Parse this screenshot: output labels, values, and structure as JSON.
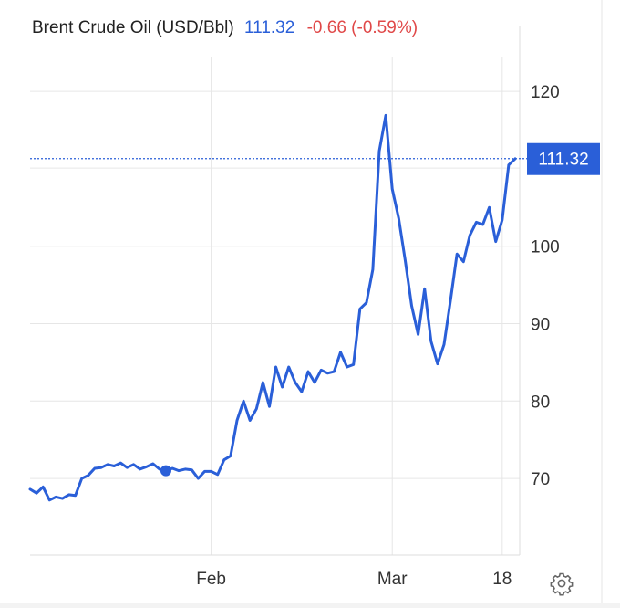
{
  "header": {
    "name": "Brent Crude Oil (USD/Bbl)",
    "price": "111.32",
    "change": "-0.66 (-0.59%)"
  },
  "colors": {
    "line": "#2a5fd8",
    "price": "#2a5fd8",
    "negative": "#e04848",
    "grid": "#e6e6e6"
  },
  "icons": {
    "settings": "gear-icon"
  },
  "chart_data": {
    "type": "line",
    "title": "Brent Crude Oil (USD/Bbl)",
    "xlabel": "",
    "ylabel": "",
    "y_ticks": [
      70,
      80,
      90,
      100,
      120
    ],
    "ylim": [
      60.1,
      124.5
    ],
    "x_ticks": [
      {
        "label": "Feb",
        "date": "2022-02-01"
      },
      {
        "label": "Mar",
        "date": "2022-03-01"
      },
      {
        "label": "18",
        "date": "2022-03-18"
      }
    ],
    "xlim": [
      "2022-01-04",
      "2022-03-20"
    ],
    "last_price": 111.32,
    "last_price_label": "111.32",
    "marker": {
      "date": "2022-01-25",
      "value": 71.0
    },
    "grid": true,
    "series": [
      {
        "name": "Brent Crude Oil",
        "points": [
          [
            "2022-01-04",
            68.6
          ],
          [
            "2022-01-05",
            68.1
          ],
          [
            "2022-01-06",
            68.9
          ],
          [
            "2022-01-07",
            67.2
          ],
          [
            "2022-01-08",
            67.6
          ],
          [
            "2022-01-09",
            67.4
          ],
          [
            "2022-01-10",
            67.9
          ],
          [
            "2022-01-11",
            67.8
          ],
          [
            "2022-01-12",
            70.0
          ],
          [
            "2022-01-13",
            70.4
          ],
          [
            "2022-01-14",
            71.3
          ],
          [
            "2022-01-15",
            71.4
          ],
          [
            "2022-01-16",
            71.8
          ],
          [
            "2022-01-17",
            71.6
          ],
          [
            "2022-01-18",
            72.0
          ],
          [
            "2022-01-19",
            71.4
          ],
          [
            "2022-01-20",
            71.8
          ],
          [
            "2022-01-21",
            71.2
          ],
          [
            "2022-01-22",
            71.5
          ],
          [
            "2022-01-23",
            71.9
          ],
          [
            "2022-01-24",
            71.2
          ],
          [
            "2022-01-25",
            71.0
          ],
          [
            "2022-01-26",
            71.3
          ],
          [
            "2022-01-27",
            71.0
          ],
          [
            "2022-01-28",
            71.2
          ],
          [
            "2022-01-29",
            71.1
          ],
          [
            "2022-01-30",
            70.0
          ],
          [
            "2022-01-31",
            70.9
          ],
          [
            "2022-02-01",
            70.9
          ],
          [
            "2022-02-02",
            70.5
          ],
          [
            "2022-02-03",
            72.4
          ],
          [
            "2022-02-04",
            72.9
          ],
          [
            "2022-02-05",
            77.5
          ],
          [
            "2022-02-06",
            80.0
          ],
          [
            "2022-02-07",
            77.5
          ],
          [
            "2022-02-08",
            79.0
          ],
          [
            "2022-02-09",
            82.4
          ],
          [
            "2022-02-10",
            79.3
          ],
          [
            "2022-02-11",
            84.4
          ],
          [
            "2022-02-12",
            81.8
          ],
          [
            "2022-02-13",
            84.4
          ],
          [
            "2022-02-14",
            82.4
          ],
          [
            "2022-02-15",
            81.2
          ],
          [
            "2022-02-16",
            83.8
          ],
          [
            "2022-02-17",
            82.4
          ],
          [
            "2022-02-18",
            84.0
          ],
          [
            "2022-02-19",
            83.6
          ],
          [
            "2022-02-20",
            83.8
          ],
          [
            "2022-02-21",
            86.3
          ],
          [
            "2022-02-22",
            84.4
          ],
          [
            "2022-02-23",
            84.7
          ],
          [
            "2022-02-24",
            91.9
          ],
          [
            "2022-02-25",
            92.7
          ],
          [
            "2022-02-26",
            97.0
          ],
          [
            "2022-02-27",
            112.3
          ],
          [
            "2022-02-28",
            116.9
          ],
          [
            "2022-03-01",
            107.4
          ],
          [
            "2022-03-02",
            103.6
          ],
          [
            "2022-03-03",
            98.2
          ],
          [
            "2022-03-04",
            92.3
          ],
          [
            "2022-03-05",
            88.6
          ],
          [
            "2022-03-06",
            94.5
          ],
          [
            "2022-03-07",
            87.7
          ],
          [
            "2022-03-08",
            84.8
          ],
          [
            "2022-03-09",
            87.3
          ],
          [
            "2022-03-10",
            93.0
          ],
          [
            "2022-03-11",
            99.0
          ],
          [
            "2022-03-12",
            98.0
          ],
          [
            "2022-03-13",
            101.4
          ],
          [
            "2022-03-14",
            103.1
          ],
          [
            "2022-03-15",
            102.8
          ],
          [
            "2022-03-16",
            105.0
          ],
          [
            "2022-03-17",
            100.6
          ],
          [
            "2022-03-18",
            103.4
          ],
          [
            "2022-03-19",
            110.5
          ],
          [
            "2022-03-20",
            111.3
          ]
        ]
      }
    ]
  }
}
